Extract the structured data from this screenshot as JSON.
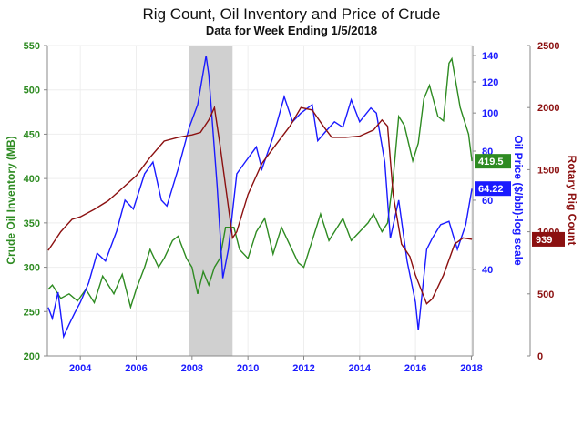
{
  "chart_data": {
    "type": "line",
    "title": "Rig Count, Oil Inventory and Price of Crude",
    "subtitle": "Data for Week Ending 1/5/2018",
    "x_ticks": [
      "2004",
      "2006",
      "2008",
      "2010",
      "2012",
      "2014",
      "2016",
      "2018"
    ],
    "xlim": [
      2002.82,
      2018.05
    ],
    "grid": true,
    "shaded_region": [
      2007.9,
      2009.45
    ],
    "axes": {
      "left": {
        "label": "Crude Oil Inventory (MB)",
        "ylim": [
          200,
          550
        ],
        "ticks": [
          "200",
          "250",
          "300",
          "350",
          "400",
          "450",
          "500",
          "550"
        ],
        "color": "#2e8b22"
      },
      "right_inner": {
        "label": "Oil Price ($/bbl)-log scale",
        "scale": "log",
        "ylim": [
          24.1,
          148.5
        ],
        "ticks": [
          "40",
          "60",
          "80",
          "100",
          "120",
          "140"
        ],
        "color": "#1a1aff"
      },
      "right_outer": {
        "label": "Rotary Rig Count",
        "ylim": [
          0,
          2500
        ],
        "ticks": [
          "0",
          "500",
          "1000",
          "1500",
          "2000",
          "2500"
        ],
        "color": "#8b1010"
      }
    },
    "series": [
      {
        "axis": "left",
        "color": "#2e8b22",
        "last_label": "419.5",
        "x": [
          2002.85,
          2003.0,
          2003.3,
          2003.6,
          2003.9,
          2004.2,
          2004.5,
          2004.8,
          2005.2,
          2005.5,
          2005.8,
          2006.0,
          2006.3,
          2006.5,
          2006.8,
          2007.0,
          2007.3,
          2007.5,
          2007.8,
          2008.0,
          2008.2,
          2008.4,
          2008.6,
          2008.8,
          2009.0,
          2009.2,
          2009.5,
          2009.7,
          2010.0,
          2010.3,
          2010.6,
          2010.9,
          2011.2,
          2011.5,
          2011.8,
          2012.0,
          2012.3,
          2012.6,
          2012.9,
          2013.2,
          2013.4,
          2013.7,
          2014.0,
          2014.3,
          2014.5,
          2014.8,
          2015.0,
          2015.2,
          2015.4,
          2015.6,
          2015.9,
          2016.1,
          2016.3,
          2016.5,
          2016.8,
          2017.0,
          2017.2,
          2017.3,
          2017.6,
          2017.9,
          2018.02
        ],
        "y": [
          275,
          280,
          265,
          270,
          262,
          275,
          260,
          290,
          270,
          292,
          255,
          275,
          300,
          320,
          300,
          310,
          330,
          335,
          310,
          300,
          270,
          295,
          280,
          300,
          310,
          345,
          345,
          320,
          310,
          340,
          355,
          315,
          345,
          325,
          305,
          300,
          330,
          360,
          330,
          345,
          355,
          330,
          340,
          350,
          360,
          340,
          350,
          400,
          470,
          460,
          420,
          440,
          490,
          505,
          470,
          465,
          530,
          535,
          480,
          450,
          419.5
        ]
      },
      {
        "axis": "right_inner",
        "color": "#1a1aff",
        "last_label": "64.22",
        "x": [
          2002.85,
          2003.0,
          2003.2,
          2003.4,
          2003.6,
          2003.8,
          2004.0,
          2004.3,
          2004.6,
          2004.9,
          2005.3,
          2005.6,
          2005.9,
          2006.3,
          2006.6,
          2006.9,
          2007.1,
          2007.5,
          2007.9,
          2008.2,
          2008.5,
          2008.6,
          2008.9,
          2009.1,
          2009.3,
          2009.6,
          2009.9,
          2010.3,
          2010.5,
          2010.9,
          2011.3,
          2011.6,
          2011.9,
          2012.3,
          2012.5,
          2012.8,
          2013.1,
          2013.4,
          2013.7,
          2014.0,
          2014.4,
          2014.6,
          2014.9,
          2015.1,
          2015.4,
          2015.7,
          2016.0,
          2016.1,
          2016.4,
          2016.6,
          2016.9,
          2017.2,
          2017.5,
          2017.8,
          2018.02
        ],
        "y": [
          32,
          30,
          35,
          27,
          29,
          31,
          33,
          37,
          44,
          42,
          50,
          60,
          57,
          70,
          75,
          60,
          58,
          72,
          92,
          105,
          140,
          125,
          65,
          38,
          45,
          70,
          75,
          82,
          72,
          87,
          110,
          95,
          100,
          105,
          85,
          90,
          95,
          92,
          108,
          95,
          103,
          100,
          75,
          48,
          60,
          42,
          33,
          28,
          45,
          48,
          52,
          53,
          45,
          52,
          64.22
        ]
      },
      {
        "axis": "right_outer",
        "color": "#8b1010",
        "last_label": "939",
        "x": [
          2002.85,
          2003.3,
          2003.7,
          2004.0,
          2004.5,
          2005.0,
          2005.5,
          2006.0,
          2006.5,
          2007.0,
          2007.5,
          2008.0,
          2008.3,
          2008.6,
          2008.8,
          2009.0,
          2009.3,
          2009.45,
          2009.6,
          2010.0,
          2010.5,
          2011.0,
          2011.5,
          2011.9,
          2012.3,
          2012.7,
          2013.0,
          2013.5,
          2014.0,
          2014.5,
          2014.8,
          2015.0,
          2015.2,
          2015.5,
          2015.8,
          2016.0,
          2016.4,
          2016.6,
          2017.0,
          2017.4,
          2017.7,
          2018.02
        ],
        "y": [
          850,
          1000,
          1100,
          1120,
          1180,
          1250,
          1350,
          1450,
          1600,
          1730,
          1760,
          1780,
          1800,
          1900,
          2000,
          1700,
          1200,
          950,
          1000,
          1300,
          1550,
          1700,
          1850,
          2000,
          1980,
          1850,
          1760,
          1760,
          1770,
          1820,
          1900,
          1850,
          1300,
          900,
          800,
          650,
          420,
          460,
          650,
          900,
          950,
          939
        ]
      }
    ]
  }
}
